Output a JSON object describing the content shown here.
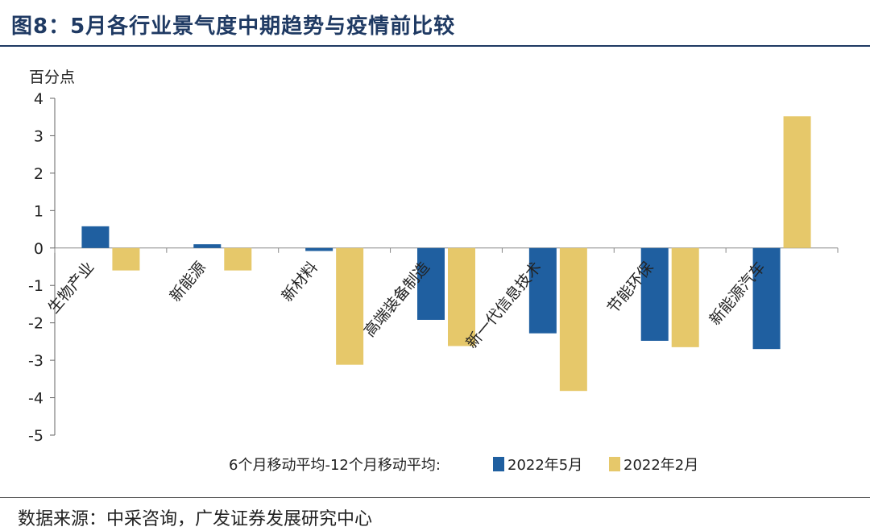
{
  "header": {
    "title": "图8：5月各行业景气度中期趋势与疫情前比较"
  },
  "footer": {
    "source": "数据来源：中采咨询，广发证券发展研究中心"
  },
  "chart_data": {
    "type": "bar",
    "title": "图8：5月各行业景气度中期趋势与疫情前比较",
    "ylabel": "百分点",
    "xlabel": "",
    "ylim": [
      -5,
      4
    ],
    "yticks": [
      4,
      3,
      2,
      1,
      0,
      -1,
      -2,
      -3,
      -4,
      -5
    ],
    "categories": [
      "生物产业",
      "新能源",
      "新材料",
      "高端装备制造",
      "新一代信息技术",
      "节能环保",
      "新能源汽车"
    ],
    "legend_prefix": "6个月移动平均-12个月移动平均:",
    "series": [
      {
        "name": "2022年5月",
        "color": "#1f5fa0",
        "values": [
          0.58,
          0.1,
          -0.08,
          -1.92,
          -2.28,
          -2.48,
          -2.7
        ]
      },
      {
        "name": "2022年2月",
        "color": "#e6c86a",
        "values": [
          -0.6,
          -0.6,
          -3.12,
          -2.62,
          -3.82,
          -2.65,
          3.52
        ]
      }
    ]
  }
}
